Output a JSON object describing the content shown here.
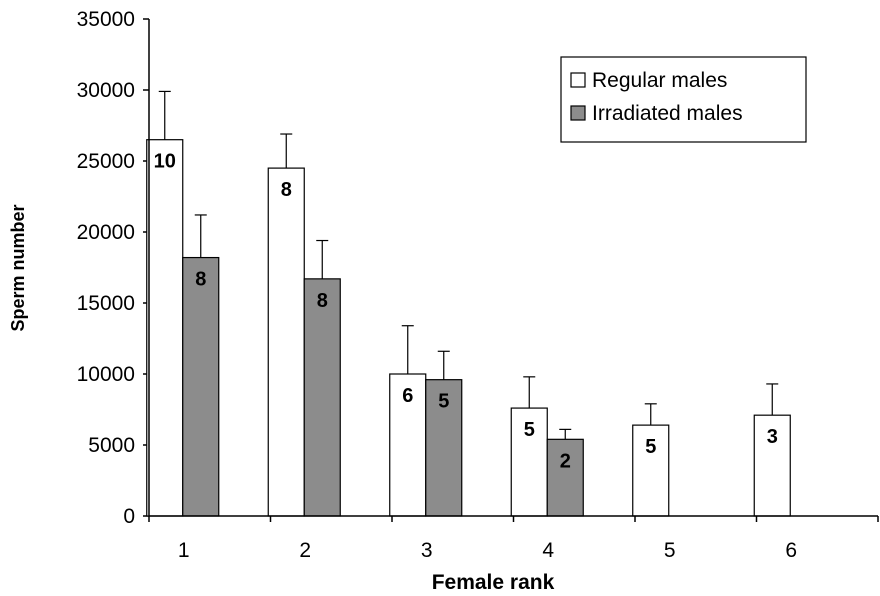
{
  "chart_data": {
    "type": "bar",
    "title": "",
    "xlabel": "Female rank",
    "ylabel": "Sperm number",
    "categories": [
      "1",
      "2",
      "3",
      "4",
      "5",
      "6"
    ],
    "ylim": [
      0,
      35000
    ],
    "yticks": [
      0,
      5000,
      10000,
      15000,
      20000,
      25000,
      30000,
      35000
    ],
    "grid": false,
    "legend_position": "top-right",
    "series": [
      {
        "name": "Regular males",
        "color": "#ffffff",
        "values": [
          26500,
          24500,
          10000,
          7600,
          6400,
          7100
        ],
        "errors": [
          3400,
          2400,
          3400,
          2200,
          1500,
          2200
        ],
        "labels": [
          "10",
          "8",
          "6",
          "5",
          "5",
          "3"
        ]
      },
      {
        "name": "Irradiated males",
        "color": "#8c8c8c",
        "values": [
          18200,
          16700,
          9600,
          5400,
          null,
          null
        ],
        "errors": [
          3000,
          2700,
          2000,
          700,
          null,
          null
        ],
        "labels": [
          "8",
          "8",
          "5",
          "2",
          "",
          ""
        ]
      }
    ]
  }
}
